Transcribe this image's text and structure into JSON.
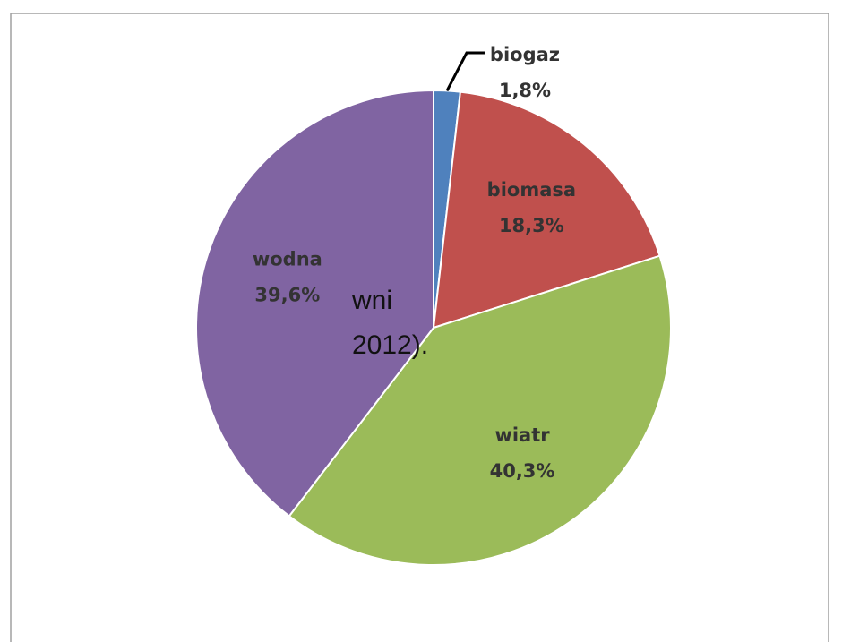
{
  "chart_data": {
    "type": "pie",
    "categories": [
      "biogaz",
      "biomasa",
      "wiatr",
      "wodna"
    ],
    "values": [
      1.8,
      18.3,
      40.3,
      39.6
    ],
    "value_labels": [
      "1,8%",
      "18,3%",
      "40,3%",
      "39,6%"
    ],
    "colors": [
      "#4f81bd",
      "#c0504d",
      "#9bbb59",
      "#8064a2"
    ]
  },
  "background_text": [
    "wni",
    "2012)."
  ]
}
